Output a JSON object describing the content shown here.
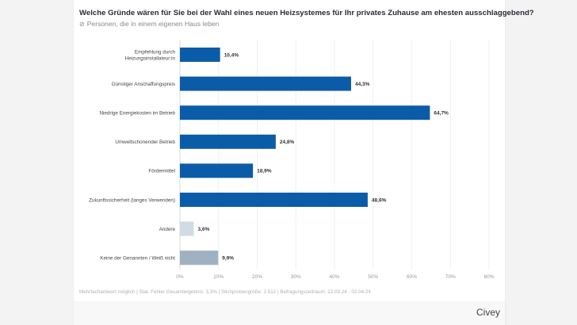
{
  "title": "Welche Gründe wären für Sie bei der Wahl eines neuen Heizsystemes für Ihr privates Zuhause am ehesten ausschlaggebend?",
  "subtitle": "Personen, die in einem eigenen Haus leben",
  "subtitle_icon": "tag-icon",
  "footer": "Mehrfachantwort möglich | Stat. Fehler Gesamtergebnis: 3,3% | Stichprobengröße: 2.512 | Befragungszeitraum: 22.03.24 - 02.04.24",
  "brand": "Civey",
  "chart_data": {
    "type": "bar",
    "orientation": "horizontal",
    "categories": [
      "Empfehlung durch\nHeizungsinstallateur:in",
      "Günstiger Anschaffungspreis",
      "Niedrige Energiekosten im Betrieb",
      "Umweltschonender Betrieb",
      "Fördermittel",
      "Zukunftssicherheit (langes Verwenden)",
      "Andere",
      "Keine der Genannten / Weiß nicht"
    ],
    "values": [
      10.4,
      44.3,
      64.7,
      24.8,
      18.9,
      48.6,
      3.6,
      9.9
    ],
    "data_labels": [
      "10,4%",
      "44,3%",
      "64,7%",
      "24,8%",
      "18,9%",
      "48,6%",
      "3,6%",
      "9,9%"
    ],
    "colors": [
      "#0b5ca8",
      "#0b5ca8",
      "#0b5ca8",
      "#0b5ca8",
      "#0b5ca8",
      "#0b5ca8",
      "#d1dbe4",
      "#9fb2c1"
    ],
    "xlim": [
      0,
      80
    ],
    "xticks": [
      "0%",
      "10%",
      "20%",
      "30%",
      "40%",
      "50%",
      "60%",
      "70%",
      "80%"
    ],
    "grid": true
  }
}
